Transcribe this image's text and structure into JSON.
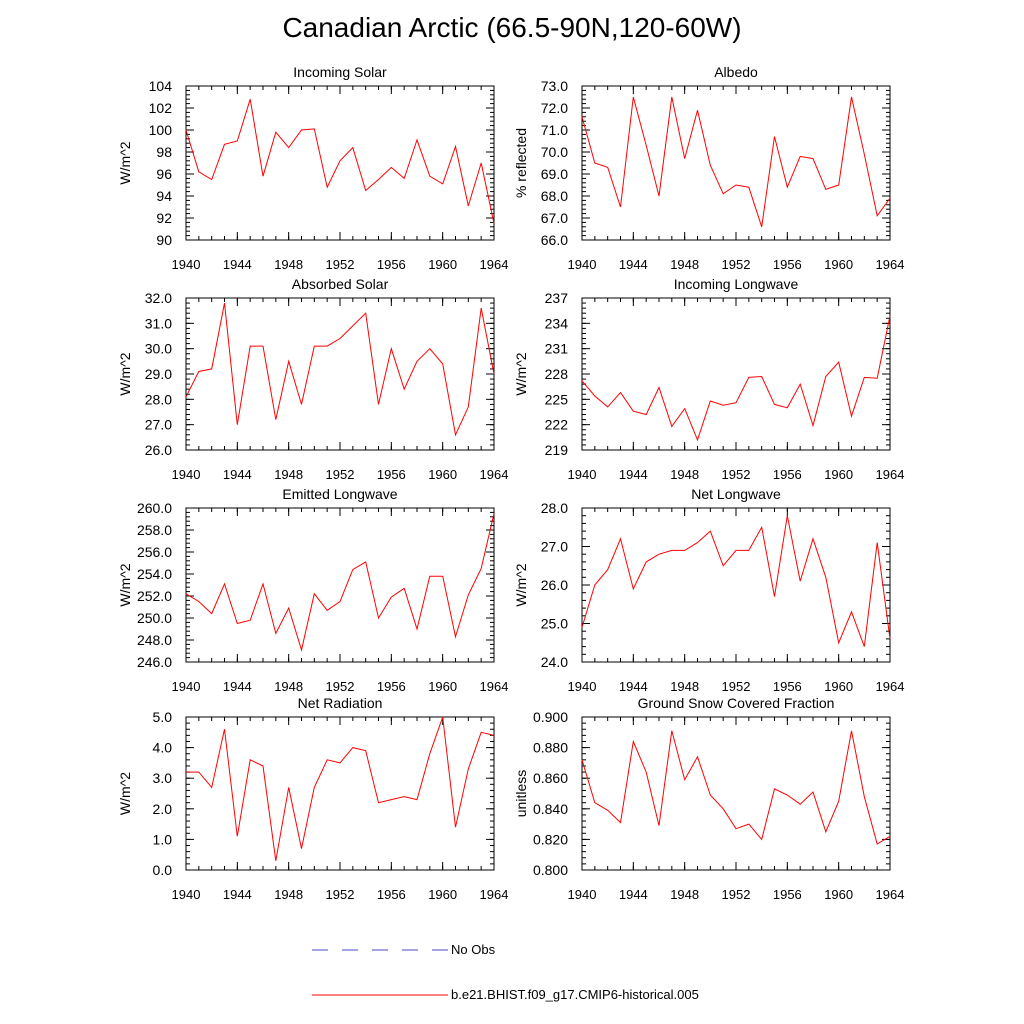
{
  "title": "Canadian Arctic (66.5-90N,120-60W)",
  "legend": {
    "items": [
      {
        "label": "No Obs",
        "color": "#4a4ac8",
        "style": "dashed"
      },
      {
        "label": "b.e21.BHIST.f09_g17.CMIP6-historical.005",
        "color": "#ff0000",
        "style": "solid"
      }
    ]
  },
  "chart_data": [
    {
      "type": "line",
      "title": "Incoming Solar",
      "ylabel": "W/m^2",
      "xlim": [
        1940,
        1964
      ],
      "ylim": [
        90,
        104
      ],
      "yticks": [
        "90",
        "92",
        "94",
        "96",
        "98",
        "100",
        "102",
        "104"
      ],
      "xticks": [
        "1940",
        "1944",
        "1948",
        "1952",
        "1956",
        "1960",
        "1964"
      ],
      "series": [
        {
          "name": "b.e21.BHIST.f09_g17.CMIP6-historical.005",
          "x": [
            1940,
            1941,
            1942,
            1943,
            1944,
            1945,
            1946,
            1947,
            1948,
            1949,
            1950,
            1951,
            1952,
            1953,
            1954,
            1955,
            1956,
            1957,
            1958,
            1959,
            1960,
            1961,
            1962,
            1963,
            1964
          ],
          "values": [
            100.0,
            96.2,
            95.5,
            98.7,
            99.0,
            102.8,
            95.8,
            99.8,
            98.4,
            100.0,
            100.1,
            94.8,
            97.2,
            98.4,
            94.5,
            95.5,
            96.6,
            95.6,
            99.1,
            95.8,
            95.1,
            98.5,
            93.1,
            97.0,
            91.5
          ]
        }
      ]
    },
    {
      "type": "line",
      "title": "Albedo",
      "ylabel": "% reflected",
      "xlim": [
        1940,
        1964
      ],
      "ylim": [
        66,
        73
      ],
      "yticks": [
        "66.0",
        "67.0",
        "68.0",
        "69.0",
        "70.0",
        "71.0",
        "72.0",
        "73.0"
      ],
      "xticks": [
        "1940",
        "1944",
        "1948",
        "1952",
        "1956",
        "1960",
        "1964"
      ],
      "series": [
        {
          "name": "b.e21.BHIST.f09_g17.CMIP6-historical.005",
          "x": [
            1940,
            1941,
            1942,
            1943,
            1944,
            1945,
            1946,
            1947,
            1948,
            1949,
            1950,
            1951,
            1952,
            1953,
            1954,
            1955,
            1956,
            1957,
            1958,
            1959,
            1960,
            1961,
            1962,
            1963,
            1964
          ],
          "values": [
            71.6,
            69.5,
            69.3,
            67.5,
            72.5,
            70.3,
            68.0,
            72.5,
            69.7,
            71.9,
            69.4,
            68.1,
            68.5,
            68.4,
            66.6,
            70.7,
            68.4,
            69.8,
            69.7,
            68.3,
            68.5,
            72.5,
            69.9,
            67.1,
            67.9
          ]
        }
      ]
    },
    {
      "type": "line",
      "title": "Absorbed Solar",
      "ylabel": "W/m^2",
      "xlim": [
        1940,
        1964
      ],
      "ylim": [
        26,
        32
      ],
      "yticks": [
        "26.0",
        "27.0",
        "28.0",
        "29.0",
        "30.0",
        "31.0",
        "32.0"
      ],
      "xticks": [
        "1940",
        "1944",
        "1948",
        "1952",
        "1956",
        "1960",
        "1964"
      ],
      "series": [
        {
          "name": "b.e21.BHIST.f09_g17.CMIP6-historical.005",
          "x": [
            1940,
            1941,
            1942,
            1943,
            1944,
            1945,
            1946,
            1947,
            1948,
            1949,
            1950,
            1951,
            1952,
            1953,
            1954,
            1955,
            1956,
            1957,
            1958,
            1959,
            1960,
            1961,
            1962,
            1963,
            1964
          ],
          "values": [
            28.1,
            29.1,
            29.2,
            31.8,
            27.0,
            30.1,
            30.1,
            27.2,
            29.5,
            27.8,
            30.1,
            30.1,
            30.4,
            30.9,
            31.4,
            27.8,
            30.0,
            28.4,
            29.5,
            30.0,
            29.4,
            26.6,
            27.7,
            31.6,
            29.0
          ]
        }
      ]
    },
    {
      "type": "line",
      "title": "Incoming Longwave",
      "ylabel": "W/m^2",
      "xlim": [
        1940,
        1964
      ],
      "ylim": [
        219,
        237
      ],
      "yticks": [
        "219",
        "222",
        "225",
        "228",
        "231",
        "234",
        "237"
      ],
      "xticks": [
        "1940",
        "1944",
        "1948",
        "1952",
        "1956",
        "1960",
        "1964"
      ],
      "series": [
        {
          "name": "b.e21.BHIST.f09_g17.CMIP6-historical.005",
          "x": [
            1940,
            1941,
            1942,
            1943,
            1944,
            1945,
            1946,
            1947,
            1948,
            1949,
            1950,
            1951,
            1952,
            1953,
            1954,
            1955,
            1956,
            1957,
            1958,
            1959,
            1960,
            1961,
            1962,
            1963,
            1964
          ],
          "values": [
            227.2,
            225.4,
            224.1,
            225.8,
            223.6,
            223.2,
            226.4,
            221.8,
            223.9,
            220.2,
            224.8,
            224.3,
            224.6,
            227.6,
            227.7,
            224.4,
            224.0,
            226.8,
            221.9,
            227.7,
            229.4,
            223.0,
            227.6,
            227.5,
            234.9
          ]
        }
      ]
    },
    {
      "type": "line",
      "title": "Emitted Longwave",
      "ylabel": "W/m^2",
      "xlim": [
        1940,
        1964
      ],
      "ylim": [
        246,
        260
      ],
      "yticks": [
        "246.0",
        "248.0",
        "250.0",
        "252.0",
        "254.0",
        "256.0",
        "258.0",
        "260.0"
      ],
      "xticks": [
        "1940",
        "1944",
        "1948",
        "1952",
        "1956",
        "1960",
        "1964"
      ],
      "series": [
        {
          "name": "b.e21.BHIST.f09_g17.CMIP6-historical.005",
          "x": [
            1940,
            1941,
            1942,
            1943,
            1944,
            1945,
            1946,
            1947,
            1948,
            1949,
            1950,
            1951,
            1952,
            1953,
            1954,
            1955,
            1956,
            1957,
            1958,
            1959,
            1960,
            1961,
            1962,
            1963,
            1964
          ],
          "values": [
            252.2,
            251.5,
            250.4,
            253.1,
            249.5,
            249.8,
            253.1,
            248.6,
            250.9,
            247.1,
            252.2,
            250.7,
            251.5,
            254.4,
            255.1,
            250.0,
            251.9,
            252.7,
            249.0,
            253.8,
            253.8,
            248.3,
            252.1,
            254.5,
            259.5
          ]
        }
      ]
    },
    {
      "type": "line",
      "title": "Net Longwave",
      "ylabel": "W/m^2",
      "xlim": [
        1940,
        1964
      ],
      "ylim": [
        24,
        28
      ],
      "yticks": [
        "24.0",
        "25.0",
        "26.0",
        "27.0",
        "28.0"
      ],
      "xticks": [
        "1940",
        "1944",
        "1948",
        "1952",
        "1956",
        "1960",
        "1964"
      ],
      "series": [
        {
          "name": "b.e21.BHIST.f09_g17.CMIP6-historical.005",
          "x": [
            1940,
            1941,
            1942,
            1943,
            1944,
            1945,
            1946,
            1947,
            1948,
            1949,
            1950,
            1951,
            1952,
            1953,
            1954,
            1955,
            1956,
            1957,
            1958,
            1959,
            1960,
            1961,
            1962,
            1963,
            1964
          ],
          "values": [
            24.9,
            26.0,
            26.4,
            27.2,
            25.9,
            26.6,
            26.8,
            26.9,
            26.9,
            27.1,
            27.4,
            26.5,
            26.9,
            26.9,
            27.5,
            25.7,
            27.8,
            26.1,
            27.2,
            26.2,
            24.5,
            25.3,
            24.4,
            27.1,
            24.6
          ]
        }
      ]
    },
    {
      "type": "line",
      "title": "Net Radiation",
      "ylabel": "W/m^2",
      "xlim": [
        1940,
        1964
      ],
      "ylim": [
        0,
        5
      ],
      "yticks": [
        "0.0",
        "1.0",
        "2.0",
        "3.0",
        "4.0",
        "5.0"
      ],
      "xticks": [
        "1940",
        "1944",
        "1948",
        "1952",
        "1956",
        "1960",
        "1964"
      ],
      "series": [
        {
          "name": "b.e21.BHIST.f09_g17.CMIP6-historical.005",
          "x": [
            1940,
            1941,
            1942,
            1943,
            1944,
            1945,
            1946,
            1947,
            1948,
            1949,
            1950,
            1951,
            1952,
            1953,
            1954,
            1955,
            1956,
            1957,
            1958,
            1959,
            1960,
            1961,
            1962,
            1963,
            1964
          ],
          "values": [
            3.2,
            3.2,
            2.7,
            4.6,
            1.1,
            3.6,
            3.4,
            0.3,
            2.7,
            0.7,
            2.7,
            3.6,
            3.5,
            4.0,
            3.9,
            2.2,
            2.3,
            2.4,
            2.3,
            3.8,
            5.0,
            1.4,
            3.3,
            4.5,
            4.4
          ]
        }
      ]
    },
    {
      "type": "line",
      "title": "Ground Snow Covered Fraction",
      "ylabel": "unitless",
      "xlim": [
        1940,
        1964
      ],
      "ylim": [
        0.8,
        0.9
      ],
      "yticks": [
        "0.800",
        "0.820",
        "0.840",
        "0.860",
        "0.880",
        "0.900"
      ],
      "xticks": [
        "1940",
        "1944",
        "1948",
        "1952",
        "1956",
        "1960",
        "1964"
      ],
      "series": [
        {
          "name": "b.e21.BHIST.f09_g17.CMIP6-historical.005",
          "x": [
            1940,
            1941,
            1942,
            1943,
            1944,
            1945,
            1946,
            1947,
            1948,
            1949,
            1950,
            1951,
            1952,
            1953,
            1954,
            1955,
            1956,
            1957,
            1958,
            1959,
            1960,
            1961,
            1962,
            1963,
            1964
          ],
          "values": [
            0.872,
            0.844,
            0.839,
            0.831,
            0.884,
            0.864,
            0.829,
            0.891,
            0.859,
            0.874,
            0.849,
            0.84,
            0.827,
            0.83,
            0.82,
            0.853,
            0.849,
            0.843,
            0.851,
            0.825,
            0.845,
            0.891,
            0.848,
            0.817,
            0.822
          ]
        }
      ]
    }
  ]
}
